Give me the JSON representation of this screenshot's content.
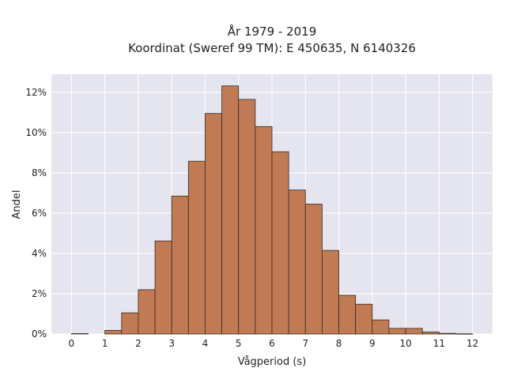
{
  "chart_data": {
    "type": "bar",
    "title": "År 1979 - 2019",
    "subtitle": "Koordinat (Sweref 99 TM): E 450635, N 6140326",
    "xlabel": "Vågperiod (s)",
    "ylabel": "Andel",
    "xlim": [
      -0.6,
      12.6
    ],
    "ylim": [
      0,
      12.9
    ],
    "x_ticks": [
      0,
      1,
      2,
      3,
      4,
      5,
      6,
      7,
      8,
      9,
      10,
      11,
      12
    ],
    "y_ticks": [
      0,
      2,
      4,
      6,
      8,
      10,
      12
    ],
    "y_tick_suffix": "%",
    "bin_width": 0.5,
    "bin_starts": [
      0.0,
      1.0,
      1.5,
      2.0,
      2.5,
      3.0,
      3.5,
      4.0,
      4.5,
      5.0,
      5.5,
      6.0,
      6.5,
      7.0,
      7.5,
      8.0,
      8.5,
      9.0,
      9.5,
      10.0,
      10.5,
      11.0,
      11.5
    ],
    "values": [
      0.02,
      0.18,
      1.05,
      2.2,
      4.62,
      6.85,
      8.58,
      10.95,
      12.32,
      11.65,
      10.3,
      9.05,
      7.15,
      6.45,
      4.15,
      1.92,
      1.48,
      0.7,
      0.28,
      0.28,
      0.1,
      0.03,
      0.01
    ],
    "grid": true,
    "bar_color": "#c07a54",
    "bar_edge_color": "#3a2a20",
    "plot_background": "#e5e5ef",
    "grid_color": "#ffffff"
  }
}
